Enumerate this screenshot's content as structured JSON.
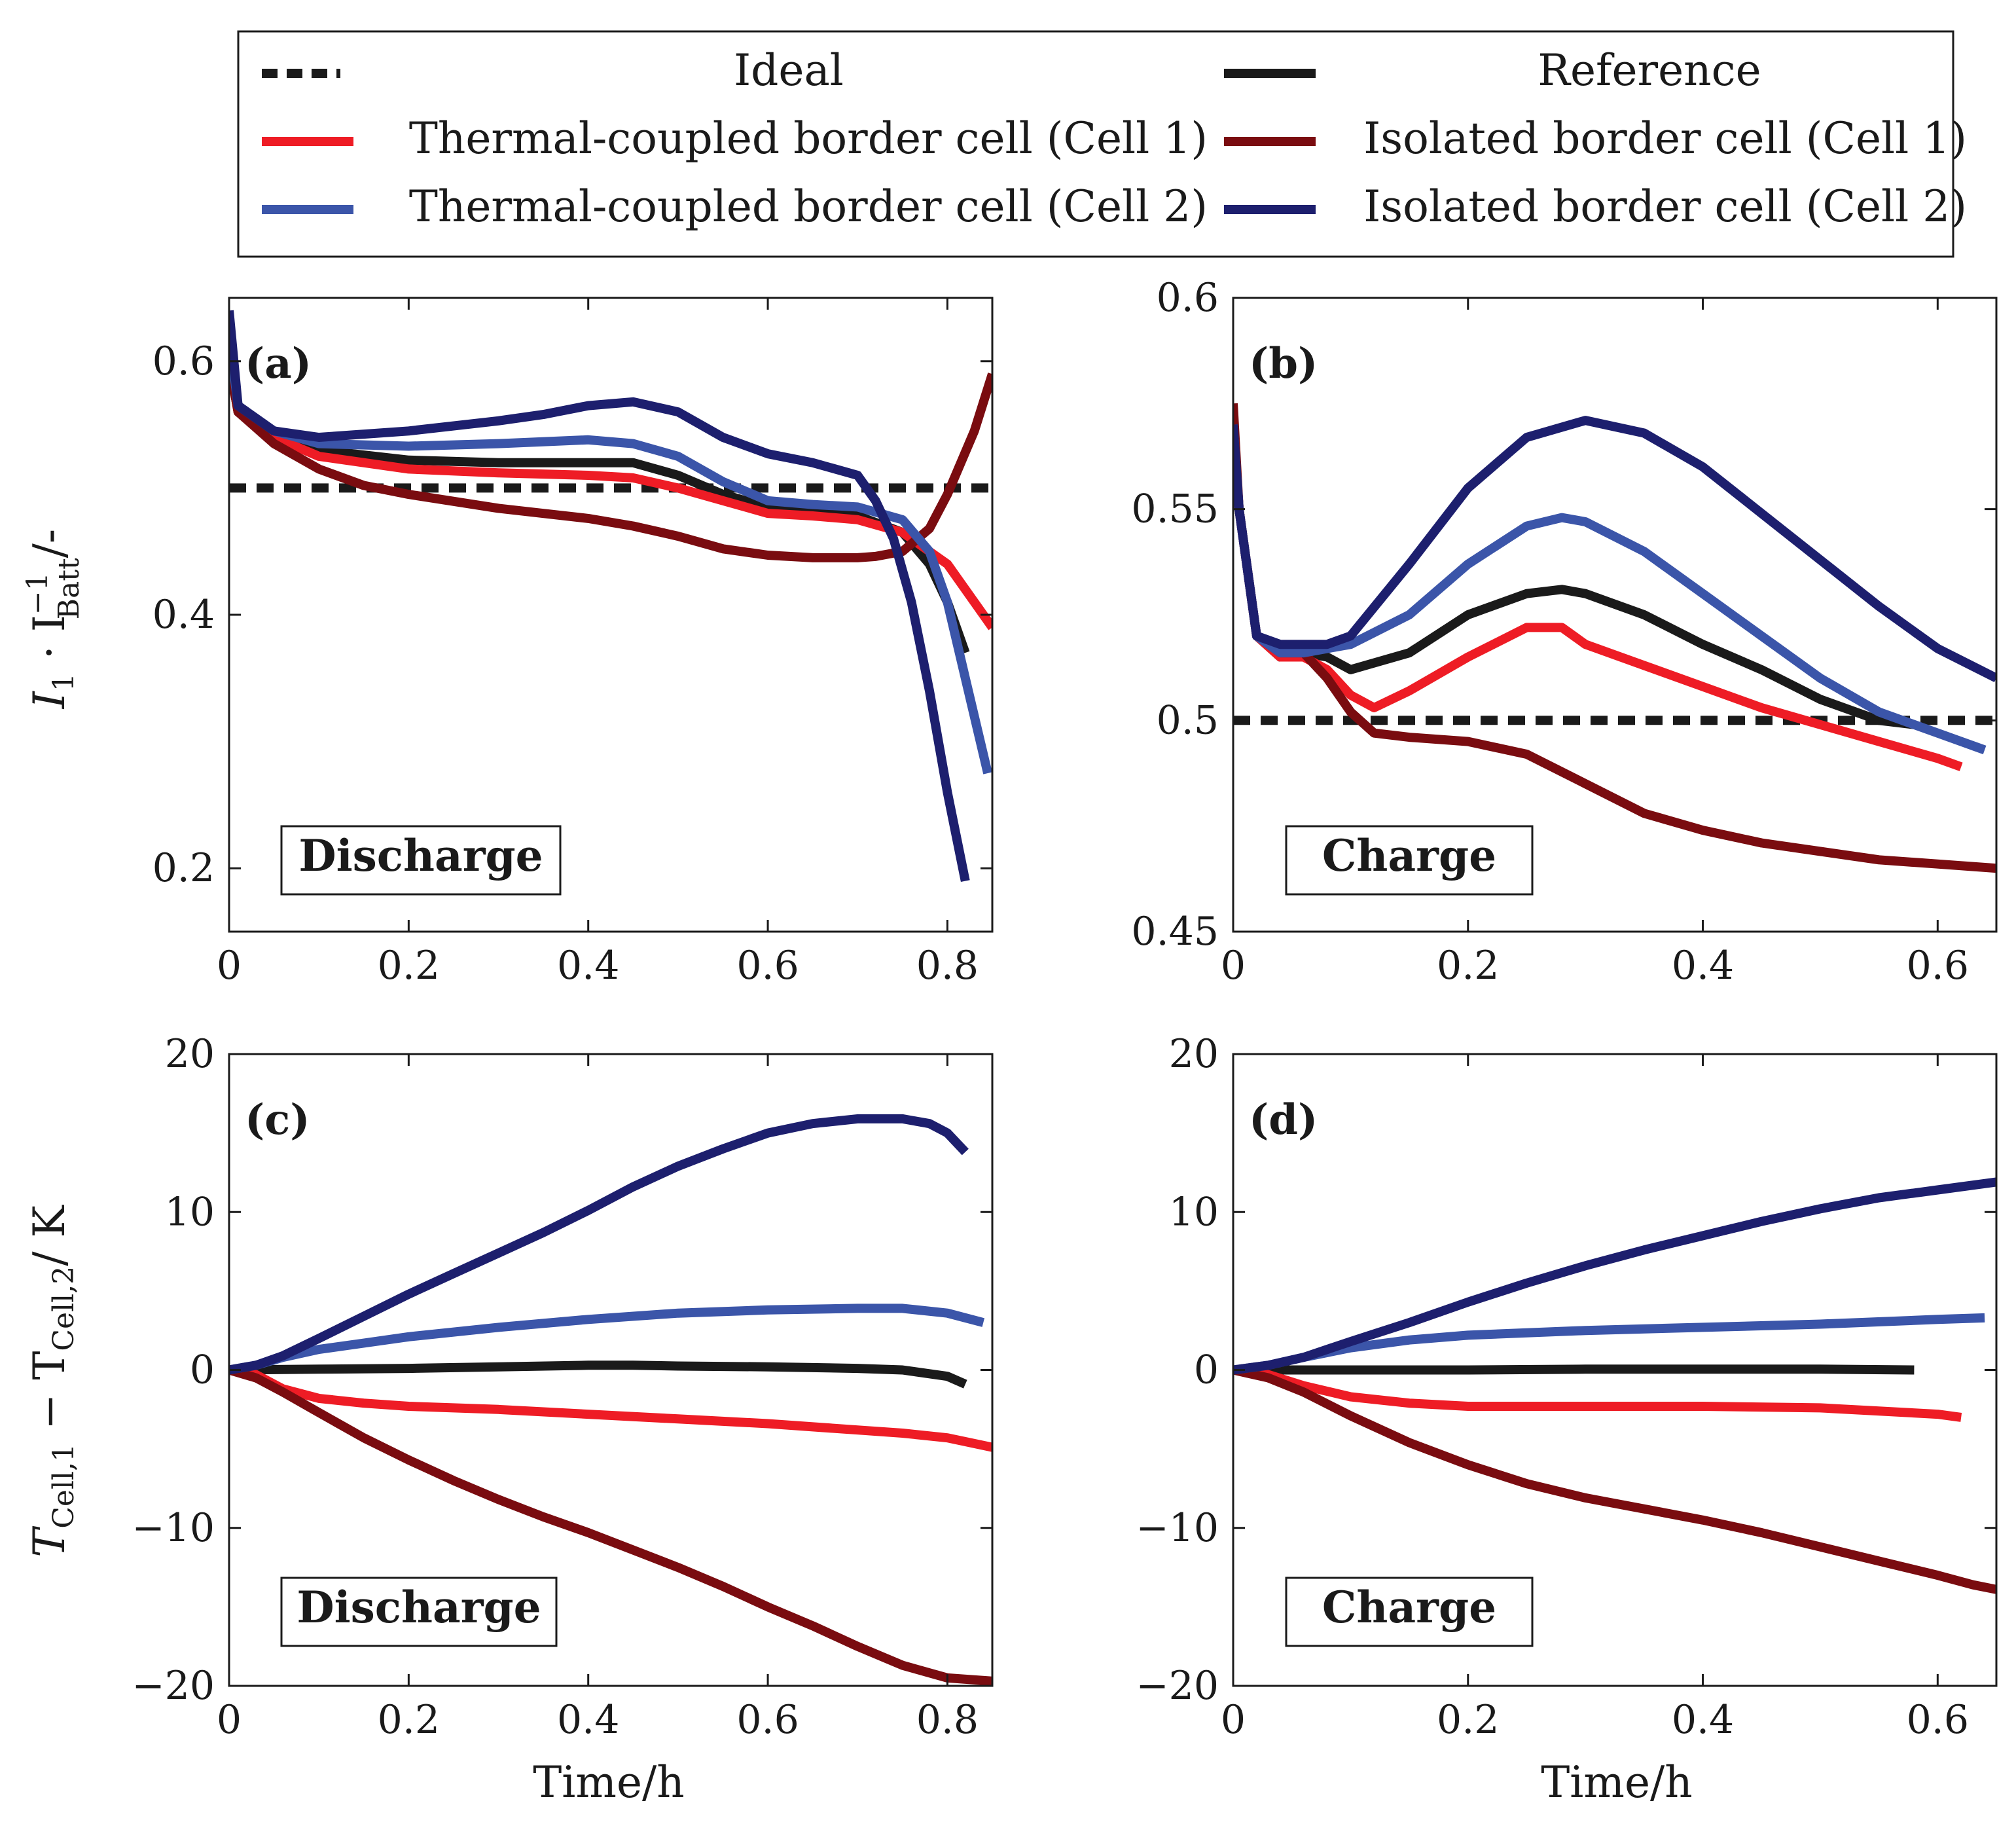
{
  "legend": {
    "items": [
      {
        "label": "Ideal",
        "color": "#1a1a1a",
        "dash": true
      },
      {
        "label": "Reference",
        "color": "#1a1a1a",
        "dash": false
      },
      {
        "label": "Thermal-coupled border cell (Cell 1)",
        "color": "#ee1c25",
        "dash": false
      },
      {
        "label": "Isolated border cell (Cell 1)",
        "color": "#7a0c10",
        "dash": false
      },
      {
        "label": "Thermal-coupled border cell (Cell 2)",
        "color": "#3b55a9",
        "dash": false
      },
      {
        "label": "Isolated border cell (Cell 2)",
        "color": "#1d1f6e",
        "dash": false
      }
    ]
  },
  "chart_data": [
    {
      "type": "line",
      "panel": "(a)",
      "mode": "Discharge",
      "xlabel": "Time/h",
      "ylabel_parts": {
        "base": "I",
        "sub1": "1",
        "mid": " · I",
        "sup": "−1",
        "sub2": "Batt",
        "unit": "/-"
      },
      "xlim": [
        0,
        0.85
      ],
      "ylim": [
        0.15,
        0.65
      ],
      "xticks": [
        0,
        0.2,
        0.4,
        0.6,
        0.8
      ],
      "xtick_labels": [
        "0",
        "0.2",
        "0.4",
        "0.6",
        "0.8"
      ],
      "yticks": [
        0.2,
        0.4,
        0.6
      ],
      "ytick_labels": [
        "0.2",
        "0.4",
        "0.6"
      ],
      "series": [
        {
          "name": "Ideal",
          "color": "#1a1a1a",
          "dash": true,
          "x": [
            0,
            0.85
          ],
          "y": [
            0.5,
            0.5
          ]
        },
        {
          "name": "Reference",
          "color": "#1a1a1a",
          "x": [
            0,
            0.01,
            0.05,
            0.1,
            0.2,
            0.3,
            0.4,
            0.45,
            0.5,
            0.55,
            0.6,
            0.65,
            0.7,
            0.75,
            0.78,
            0.8,
            0.82
          ],
          "y": [
            0.6,
            0.56,
            0.54,
            0.53,
            0.522,
            0.52,
            0.52,
            0.52,
            0.51,
            0.495,
            0.485,
            0.482,
            0.478,
            0.465,
            0.44,
            0.41,
            0.37
          ]
        },
        {
          "name": "Thermal-coupled border cell (Cell 1)",
          "color": "#ee1c25",
          "x": [
            0,
            0.01,
            0.05,
            0.1,
            0.2,
            0.3,
            0.4,
            0.45,
            0.5,
            0.55,
            0.6,
            0.65,
            0.7,
            0.75,
            0.8,
            0.85
          ],
          "y": [
            0.6,
            0.56,
            0.54,
            0.525,
            0.515,
            0.512,
            0.51,
            0.508,
            0.5,
            0.49,
            0.48,
            0.478,
            0.475,
            0.465,
            0.44,
            0.39
          ]
        },
        {
          "name": "Isolated border cell (Cell 1)",
          "color": "#7a0c10",
          "x": [
            0,
            0.01,
            0.05,
            0.1,
            0.15,
            0.2,
            0.3,
            0.4,
            0.45,
            0.5,
            0.55,
            0.6,
            0.65,
            0.7,
            0.72,
            0.75,
            0.78,
            0.8,
            0.83,
            0.85
          ],
          "y": [
            0.6,
            0.56,
            0.535,
            0.515,
            0.502,
            0.495,
            0.484,
            0.476,
            0.47,
            0.462,
            0.452,
            0.447,
            0.445,
            0.445,
            0.446,
            0.45,
            0.468,
            0.495,
            0.545,
            0.59
          ]
        },
        {
          "name": "Thermal-coupled border cell (Cell 2)",
          "color": "#3b55a9",
          "x": [
            0,
            0.01,
            0.05,
            0.1,
            0.2,
            0.3,
            0.4,
            0.45,
            0.5,
            0.55,
            0.6,
            0.65,
            0.7,
            0.75,
            0.78,
            0.8,
            0.82,
            0.845
          ],
          "y": [
            0.62,
            0.565,
            0.545,
            0.535,
            0.533,
            0.535,
            0.538,
            0.535,
            0.525,
            0.505,
            0.49,
            0.487,
            0.485,
            0.475,
            0.45,
            0.41,
            0.35,
            0.275
          ]
        },
        {
          "name": "Isolated border cell (Cell 2)",
          "color": "#1d1f6e",
          "x": [
            0,
            0.01,
            0.05,
            0.1,
            0.2,
            0.3,
            0.35,
            0.4,
            0.45,
            0.5,
            0.55,
            0.6,
            0.65,
            0.7,
            0.72,
            0.74,
            0.76,
            0.78,
            0.8,
            0.82
          ],
          "y": [
            0.64,
            0.565,
            0.545,
            0.54,
            0.545,
            0.553,
            0.558,
            0.565,
            0.568,
            0.56,
            0.54,
            0.527,
            0.52,
            0.51,
            0.49,
            0.46,
            0.41,
            0.34,
            0.26,
            0.19
          ]
        }
      ]
    },
    {
      "type": "line",
      "panel": "(b)",
      "mode": "Charge",
      "xlabel": "Time/h",
      "xlim": [
        0,
        0.65
      ],
      "ylim": [
        0.45,
        0.6
      ],
      "xticks": [
        0,
        0.2,
        0.4,
        0.6
      ],
      "xtick_labels": [
        "0",
        "0.2",
        "0.4",
        "0.6"
      ],
      "yticks": [
        0.45,
        0.5,
        0.55,
        0.6
      ],
      "ytick_labels": [
        "0.45",
        "0.5",
        "0.55",
        "0.6"
      ],
      "series": [
        {
          "name": "Ideal",
          "color": "#1a1a1a",
          "dash": true,
          "x": [
            0,
            0.65
          ],
          "y": [
            0.5,
            0.5
          ]
        },
        {
          "name": "Reference",
          "color": "#1a1a1a",
          "x": [
            0,
            0.005,
            0.02,
            0.04,
            0.06,
            0.08,
            0.1,
            0.15,
            0.2,
            0.25,
            0.28,
            0.3,
            0.35,
            0.4,
            0.45,
            0.5,
            0.55,
            0.58
          ],
          "y": [
            0.57,
            0.55,
            0.52,
            0.515,
            0.516,
            0.515,
            0.512,
            0.516,
            0.525,
            0.53,
            0.531,
            0.53,
            0.525,
            0.518,
            0.512,
            0.505,
            0.5,
            0.499
          ]
        },
        {
          "name": "Thermal-coupled border cell (Cell 1)",
          "color": "#ee1c25",
          "x": [
            0,
            0.005,
            0.02,
            0.04,
            0.06,
            0.08,
            0.1,
            0.12,
            0.15,
            0.2,
            0.25,
            0.28,
            0.3,
            0.35,
            0.4,
            0.45,
            0.5,
            0.55,
            0.6,
            0.62
          ],
          "y": [
            0.57,
            0.55,
            0.52,
            0.515,
            0.515,
            0.512,
            0.506,
            0.503,
            0.507,
            0.515,
            0.522,
            0.522,
            0.518,
            0.513,
            0.508,
            0.503,
            0.499,
            0.495,
            0.491,
            0.489
          ]
        },
        {
          "name": "Isolated border cell (Cell 1)",
          "color": "#7a0c10",
          "x": [
            0,
            0.005,
            0.02,
            0.04,
            0.06,
            0.08,
            0.1,
            0.12,
            0.15,
            0.2,
            0.25,
            0.3,
            0.35,
            0.4,
            0.45,
            0.5,
            0.55,
            0.6,
            0.65
          ],
          "y": [
            0.575,
            0.55,
            0.52,
            0.516,
            0.516,
            0.51,
            0.502,
            0.497,
            0.496,
            0.495,
            0.492,
            0.485,
            0.478,
            0.474,
            0.471,
            0.469,
            0.467,
            0.466,
            0.465
          ]
        },
        {
          "name": "Thermal-coupled border cell (Cell 2)",
          "color": "#3b55a9",
          "x": [
            0,
            0.005,
            0.02,
            0.04,
            0.06,
            0.08,
            0.1,
            0.15,
            0.2,
            0.25,
            0.28,
            0.3,
            0.35,
            0.4,
            0.45,
            0.5,
            0.55,
            0.6,
            0.64
          ],
          "y": [
            0.57,
            0.55,
            0.52,
            0.516,
            0.516,
            0.517,
            0.518,
            0.525,
            0.537,
            0.546,
            0.548,
            0.547,
            0.54,
            0.53,
            0.52,
            0.51,
            0.502,
            0.497,
            0.493
          ]
        },
        {
          "name": "Isolated border cell (Cell 2)",
          "color": "#1d1f6e",
          "x": [
            0,
            0.005,
            0.02,
            0.04,
            0.06,
            0.08,
            0.1,
            0.15,
            0.2,
            0.25,
            0.3,
            0.35,
            0.4,
            0.45,
            0.5,
            0.55,
            0.6,
            0.65
          ],
          "y": [
            0.57,
            0.55,
            0.52,
            0.518,
            0.518,
            0.518,
            0.52,
            0.537,
            0.555,
            0.567,
            0.571,
            0.568,
            0.56,
            0.549,
            0.538,
            0.527,
            0.517,
            0.51
          ]
        }
      ]
    },
    {
      "type": "line",
      "panel": "(c)",
      "mode": "Discharge",
      "xlabel": "Time/h",
      "ylabel_parts": {
        "base": "T",
        "sub1": "Cell,1",
        "mid": " − T",
        "sub2": "Cell,2",
        "unit": "/ K"
      },
      "xlim": [
        0,
        0.85
      ],
      "ylim": [
        -20,
        20
      ],
      "xticks": [
        0,
        0.2,
        0.4,
        0.6,
        0.8
      ],
      "xtick_labels": [
        "0",
        "0.2",
        "0.4",
        "0.6",
        "0.8"
      ],
      "yticks": [
        -20,
        -10,
        0,
        10,
        20
      ],
      "ytick_labels": [
        "−20",
        "−10",
        "0",
        "10",
        "20"
      ],
      "series": [
        {
          "name": "Reference",
          "color": "#1a1a1a",
          "x": [
            0,
            0.1,
            0.2,
            0.3,
            0.4,
            0.45,
            0.5,
            0.6,
            0.7,
            0.75,
            0.8,
            0.82
          ],
          "y": [
            0,
            0.05,
            0.1,
            0.2,
            0.3,
            0.3,
            0.25,
            0.2,
            0.1,
            0,
            -0.4,
            -0.9
          ]
        },
        {
          "name": "Thermal-coupled border cell (Cell 1)",
          "color": "#ee1c25",
          "x": [
            0,
            0.03,
            0.06,
            0.1,
            0.15,
            0.2,
            0.3,
            0.4,
            0.5,
            0.6,
            0.7,
            0.75,
            0.8,
            0.85
          ],
          "y": [
            0,
            -0.3,
            -1.2,
            -1.8,
            -2.1,
            -2.3,
            -2.5,
            -2.8,
            -3.1,
            -3.4,
            -3.8,
            -4.0,
            -4.3,
            -4.9
          ]
        },
        {
          "name": "Isolated border cell (Cell 1)",
          "color": "#7a0c10",
          "x": [
            0,
            0.03,
            0.06,
            0.1,
            0.15,
            0.2,
            0.25,
            0.3,
            0.35,
            0.4,
            0.45,
            0.5,
            0.55,
            0.6,
            0.65,
            0.7,
            0.75,
            0.8,
            0.85
          ],
          "y": [
            0,
            -0.5,
            -1.4,
            -2.7,
            -4.3,
            -5.7,
            -7.0,
            -8.2,
            -9.3,
            -10.3,
            -11.4,
            -12.5,
            -13.7,
            -15.0,
            -16.2,
            -17.5,
            -18.7,
            -19.5,
            -19.7
          ]
        },
        {
          "name": "Thermal-coupled border cell (Cell 2)",
          "color": "#3b55a9",
          "x": [
            0,
            0.03,
            0.06,
            0.1,
            0.15,
            0.2,
            0.3,
            0.4,
            0.5,
            0.6,
            0.7,
            0.75,
            0.8,
            0.84
          ],
          "y": [
            0,
            0.3,
            0.8,
            1.3,
            1.7,
            2.1,
            2.7,
            3.2,
            3.6,
            3.8,
            3.9,
            3.9,
            3.6,
            3.0
          ]
        },
        {
          "name": "Isolated border cell (Cell 2)",
          "color": "#1d1f6e",
          "x": [
            0,
            0.03,
            0.06,
            0.1,
            0.15,
            0.2,
            0.25,
            0.3,
            0.35,
            0.4,
            0.45,
            0.5,
            0.55,
            0.6,
            0.65,
            0.7,
            0.75,
            0.78,
            0.8,
            0.82
          ],
          "y": [
            0,
            0.3,
            0.9,
            2.0,
            3.4,
            4.8,
            6.1,
            7.4,
            8.7,
            10.1,
            11.6,
            12.9,
            14.0,
            15.0,
            15.6,
            15.9,
            15.9,
            15.6,
            15.0,
            13.8
          ]
        }
      ]
    },
    {
      "type": "line",
      "panel": "(d)",
      "mode": "Charge",
      "xlabel": "Time/h",
      "xlim": [
        0,
        0.65
      ],
      "ylim": [
        -20,
        20
      ],
      "xticks": [
        0,
        0.2,
        0.4,
        0.6
      ],
      "xtick_labels": [
        "0",
        "0.2",
        "0.4",
        "0.6"
      ],
      "yticks": [
        -20,
        -10,
        0,
        10,
        20
      ],
      "ytick_labels": [
        "−20",
        "−10",
        "0",
        "10",
        "20"
      ],
      "series": [
        {
          "name": "Reference",
          "color": "#1a1a1a",
          "x": [
            0,
            0.1,
            0.2,
            0.3,
            0.4,
            0.5,
            0.58
          ],
          "y": [
            0,
            0,
            0,
            0.05,
            0.05,
            0.05,
            0
          ]
        },
        {
          "name": "Thermal-coupled border cell (Cell 1)",
          "color": "#ee1c25",
          "x": [
            0,
            0.03,
            0.06,
            0.1,
            0.15,
            0.2,
            0.3,
            0.4,
            0.5,
            0.6,
            0.62
          ],
          "y": [
            0,
            -0.3,
            -1.0,
            -1.7,
            -2.1,
            -2.3,
            -2.3,
            -2.3,
            -2.4,
            -2.8,
            -3.0
          ]
        },
        {
          "name": "Isolated border cell (Cell 1)",
          "color": "#7a0c10",
          "x": [
            0,
            0.03,
            0.06,
            0.1,
            0.15,
            0.2,
            0.25,
            0.3,
            0.35,
            0.4,
            0.45,
            0.5,
            0.55,
            0.6,
            0.63,
            0.65
          ],
          "y": [
            0,
            -0.5,
            -1.4,
            -2.9,
            -4.6,
            -6.0,
            -7.2,
            -8.1,
            -8.8,
            -9.5,
            -10.3,
            -11.2,
            -12.1,
            -13.0,
            -13.6,
            -13.9
          ]
        },
        {
          "name": "Thermal-coupled border cell (Cell 2)",
          "color": "#3b55a9",
          "x": [
            0,
            0.03,
            0.06,
            0.1,
            0.15,
            0.2,
            0.3,
            0.4,
            0.5,
            0.6,
            0.64
          ],
          "y": [
            0,
            0.3,
            0.8,
            1.4,
            1.9,
            2.2,
            2.5,
            2.7,
            2.9,
            3.2,
            3.3
          ]
        },
        {
          "name": "Isolated border cell (Cell 2)",
          "color": "#1d1f6e",
          "x": [
            0,
            0.03,
            0.06,
            0.1,
            0.15,
            0.2,
            0.25,
            0.3,
            0.35,
            0.4,
            0.45,
            0.5,
            0.55,
            0.6,
            0.65
          ],
          "y": [
            0,
            0.3,
            0.8,
            1.8,
            3.0,
            4.3,
            5.5,
            6.6,
            7.6,
            8.5,
            9.4,
            10.2,
            10.9,
            11.4,
            11.9
          ]
        }
      ]
    }
  ]
}
